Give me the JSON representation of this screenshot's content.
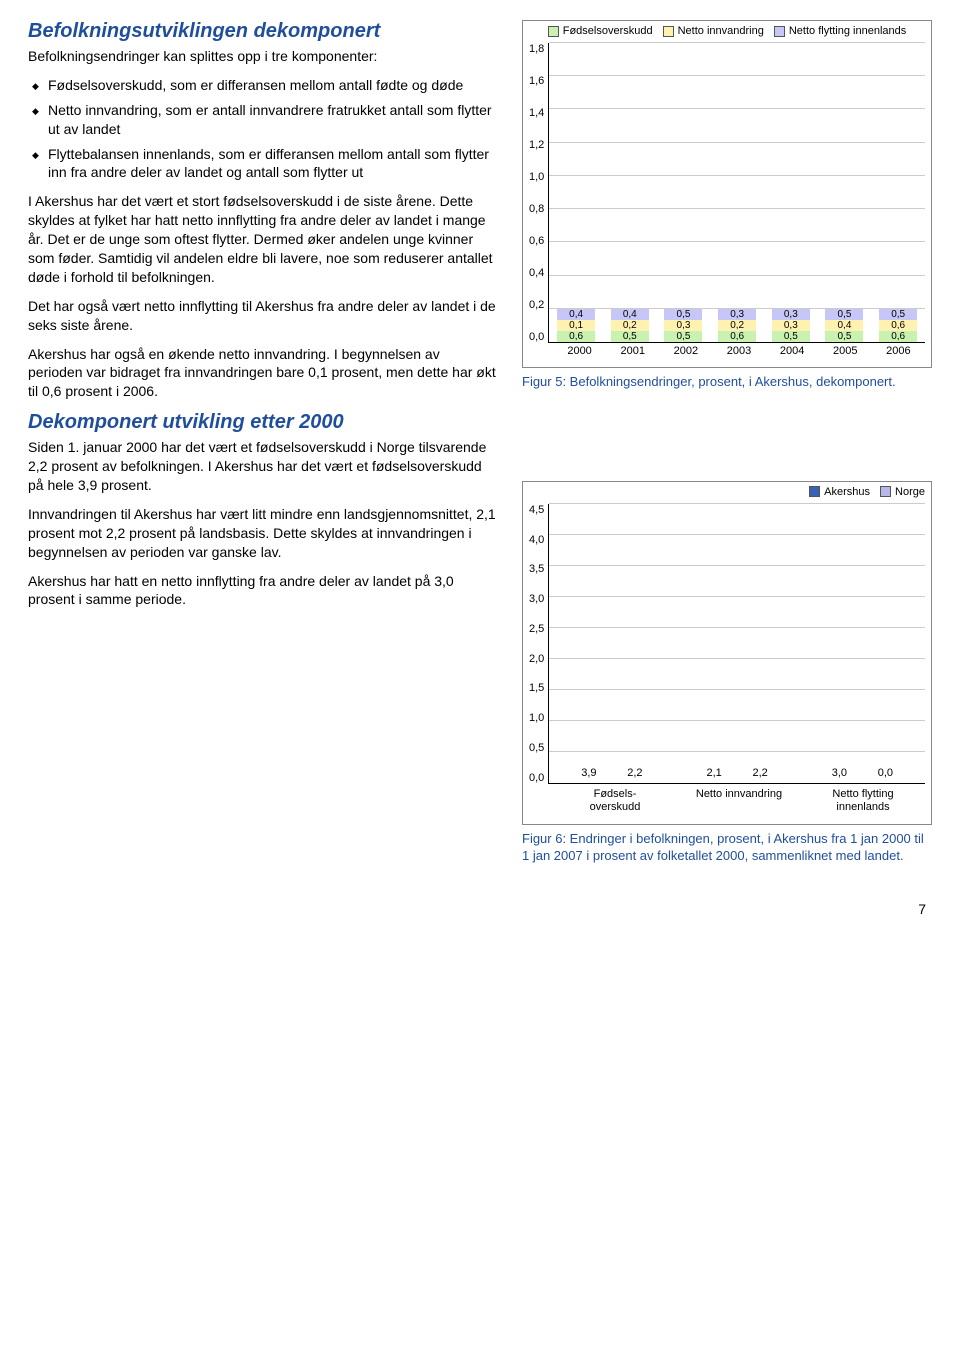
{
  "left": {
    "h1": "Befolkningsutviklingen dekomponert",
    "p1": "Befolkningsendringer kan splittes opp i tre komponenter:",
    "bullets": [
      "Fødselsoverskudd, som er differansen mellom antall fødte og døde",
      "Netto innvandring, som er antall innvandrere fratrukket antall som flytter ut av landet",
      "Flyttebalansen innenlands, som er differansen mellom antall som flytter inn fra andre deler av landet og antall som flytter ut"
    ],
    "p2": "I Akershus har det vært et stort fødselsoverskudd i de siste årene. Dette skyldes at fylket har hatt netto innflytting fra andre deler av landet i mange år. Det er de unge som oftest flytter. Dermed øker andelen unge kvinner som føder. Samtidig vil andelen eldre bli lavere, noe som reduserer antallet døde i forhold til befolkningen.",
    "p3": "Det har også vært netto innflytting til Akershus fra andre deler av landet i de seks siste årene.",
    "p4": "Akershus har også en økende netto innvandring. I begynnelsen av perioden var bidraget fra innvandringen bare 0,1 prosent, men dette har økt til 0,6 prosent i 2006.",
    "h2": "Dekomponert utvikling etter 2000",
    "p5": "Siden 1. januar 2000 har det vært et fødselsoverskudd i Norge tilsvarende 2,2 prosent av befolkningen. I Akershus har det vært et fødselsoverskudd på hele 3,9 prosent.",
    "p6": "Innvandringen til Akershus har vært litt mindre enn landsgjennomsnittet, 2,1 prosent mot 2,2 prosent på landsbasis. Dette skyldes at innvandringen i begynnelsen av perioden var ganske lav.",
    "p7": "Akershus har hatt en netto innflytting fra andre deler av landet på 3,0 prosent i samme periode."
  },
  "chart5": {
    "legend": [
      {
        "label": "Fødselsoverskudd",
        "color": "#c9f2b0"
      },
      {
        "label": "Netto innvandring",
        "color": "#fff2b0"
      },
      {
        "label": "Netto flytting innenlands",
        "color": "#c7c7f7"
      }
    ],
    "ymax": 1.8,
    "yticks": [
      "0,0",
      "0,2",
      "0,4",
      "0,6",
      "0,8",
      "1,0",
      "1,2",
      "1,4",
      "1,6",
      "1,8"
    ],
    "years": [
      "2000",
      "2001",
      "2002",
      "2003",
      "2004",
      "2005",
      "2006"
    ],
    "stacks": [
      {
        "fo": "0,6",
        "fo_v": 0.6,
        "ni": "0,1",
        "ni_v": 0.1,
        "nf": "0,4",
        "nf_v": 0.4
      },
      {
        "fo": "0,5",
        "fo_v": 0.5,
        "ni": "0,2",
        "ni_v": 0.2,
        "nf": "0,4",
        "nf_v": 0.4
      },
      {
        "fo": "0,5",
        "fo_v": 0.5,
        "ni": "0,3",
        "ni_v": 0.3,
        "nf": "0,5",
        "nf_v": 0.5
      },
      {
        "fo": "0,6",
        "fo_v": 0.6,
        "ni": "0,2",
        "ni_v": 0.2,
        "nf": "0,3",
        "nf_v": 0.3
      },
      {
        "fo": "0,5",
        "fo_v": 0.5,
        "ni": "0,3",
        "ni_v": 0.3,
        "nf": "0,3",
        "nf_v": 0.3
      },
      {
        "fo": "0,5",
        "fo_v": 0.5,
        "ni": "0,4",
        "ni_v": 0.4,
        "nf": "0,5",
        "nf_v": 0.5
      },
      {
        "fo": "0,6",
        "fo_v": 0.6,
        "ni": "0,6",
        "ni_v": 0.6,
        "nf": "0,5",
        "nf_v": 0.5
      }
    ],
    "caption": "Figur 5: Befolkningsendringer, prosent, i Akershus, dekomponert."
  },
  "chart6": {
    "legend": [
      {
        "label": "Akershus",
        "color": "#3a62b3"
      },
      {
        "label": "Norge",
        "color": "#b7b7e8"
      }
    ],
    "ymax": 4.5,
    "yticks": [
      "0,0",
      "0,5",
      "1,0",
      "1,5",
      "2,0",
      "2,5",
      "3,0",
      "3,5",
      "4,0",
      "4,5"
    ],
    "categories": [
      "Fødselsoverskudd",
      "Netto innvandring",
      "Netto flytting innenlands"
    ],
    "cat_lines": [
      [
        "Fødsels-",
        "overskudd"
      ],
      [
        "Netto innvandring",
        ""
      ],
      [
        "Netto flytting",
        "innenlands"
      ]
    ],
    "series": [
      {
        "ak": "3,9",
        "ak_v": 3.9,
        "no": "2,2",
        "no_v": 2.2
      },
      {
        "ak": "2,1",
        "ak_v": 2.1,
        "no": "2,2",
        "no_v": 2.2
      },
      {
        "ak": "3,0",
        "ak_v": 3.0,
        "no": "0,0",
        "no_v": 0.0
      }
    ],
    "caption": "Figur 6: Endringer i befolkningen, prosent, i Akershus fra 1 jan 2000 til 1 jan 2007 i prosent av folketallet 2000, sammenliknet med landet."
  },
  "page_number": "7"
}
